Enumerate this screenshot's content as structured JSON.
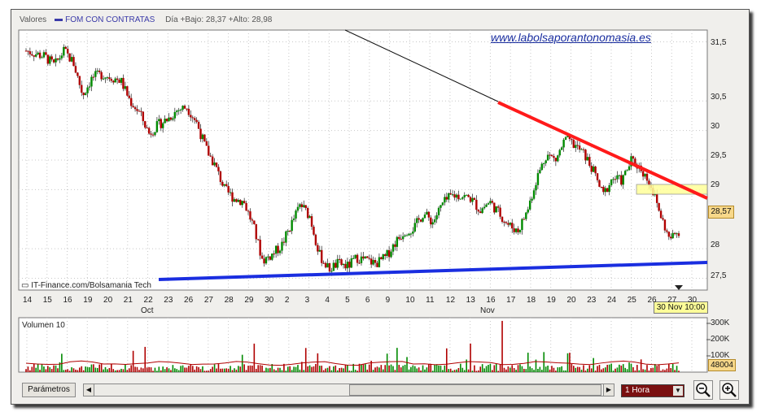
{
  "legend": {
    "label": "Valores",
    "series": "FOM CON CONTRATAS",
    "info": "Día +Bajo: 28,37 +Alto: 28,98"
  },
  "watermark": "www.labolsaporantonomasia.es",
  "credit": "IT-Finance.com/Bolsamania Tech",
  "price_badge": "28,57",
  "date_badge": "30 Nov 10:00",
  "volume_title": "Volumen 10",
  "volume_badge": "48004",
  "toolbar": {
    "params_label": "Parámetros",
    "interval_value": "1 Hora",
    "scroll_left": "◀",
    "scroll_right": "▶"
  },
  "colors": {
    "candle_up": "#008a00",
    "candle_down": "#b00000",
    "resistance": "#ff1a1a",
    "support": "#1a2ee0",
    "zone": "#ffff99"
  },
  "chart_data": {
    "type": "candlestick",
    "y_axis": {
      "ticks": [
        "31,5",
        "30,5",
        "30",
        "29,5",
        "29",
        "28",
        "27,5"
      ],
      "range": [
        27.3,
        31.7
      ]
    },
    "x_axis": {
      "ticks": [
        "14",
        "15",
        "16",
        "19",
        "20",
        "21",
        "22",
        "23",
        "26",
        "27",
        "28",
        "29",
        "30",
        "2",
        "3",
        "4",
        "5",
        "6",
        "9",
        "10",
        "11",
        "12",
        "13",
        "16",
        "17",
        "18",
        "19",
        "20",
        "23",
        "24",
        "25",
        "26",
        "27",
        "30"
      ],
      "months": [
        "Oct",
        "Nov"
      ]
    },
    "price_path": [
      31.35,
      31.3,
      31.25,
      31.1,
      31.35,
      31.15,
      30.6,
      30.9,
      30.95,
      30.9,
      30.85,
      30.5,
      30.3,
      29.95,
      30.1,
      30.2,
      30.35,
      30.4,
      30.15,
      29.7,
      29.4,
      29.0,
      28.85,
      28.8,
      28.4,
      27.8,
      27.9,
      28.05,
      28.4,
      28.75,
      28.55,
      27.9,
      27.65,
      27.75,
      27.7,
      27.85,
      27.8,
      27.75,
      27.85,
      28.1,
      28.3,
      28.35,
      28.6,
      28.45,
      28.75,
      28.9,
      28.9,
      28.85,
      28.65,
      28.8,
      28.6,
      28.4,
      28.3,
      28.65,
      29.2,
      29.6,
      29.5,
      29.85,
      29.75,
      29.6,
      29.3,
      28.9,
      29.2,
      29.15,
      29.5,
      29.35,
      29.1,
      28.6,
      28.15,
      28.3
    ],
    "volume_axis": {
      "ticks": [
        "300K",
        "200K",
        "100K"
      ],
      "range": [
        0,
        340000
      ]
    },
    "annotations": {
      "support_line": {
        "from": [
          "23 Oct",
          27.45
        ],
        "to": [
          "30 Nov",
          27.72
        ]
      },
      "resistance_line": {
        "from": [
          "17 Nov",
          30.4
        ],
        "to": [
          "30 Nov",
          28.85
        ]
      },
      "zone": {
        "from": [
          "26 Nov",
          28.82
        ],
        "to": [
          "30 Nov",
          28.98
        ]
      }
    }
  }
}
